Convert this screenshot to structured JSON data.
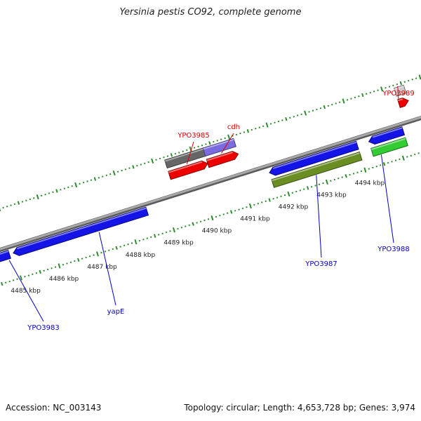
{
  "title": "Yersinia pestis CO92, complete genome",
  "footer": {
    "accession": "Accession: NC_003143",
    "summary": "Topology: circular; Length: 4,653,728 bp; Genes: 3,974"
  },
  "ticks": [
    {
      "kbp": 4485,
      "label": "4485 kbp"
    },
    {
      "kbp": 4486,
      "label": "4486 kbp"
    },
    {
      "kbp": 4487,
      "label": "4487 kbp"
    },
    {
      "kbp": 4488,
      "label": "4488 kbp"
    },
    {
      "kbp": 4489,
      "label": "4489 kbp"
    },
    {
      "kbp": 4490,
      "label": "4490 kbp"
    },
    {
      "kbp": 4491,
      "label": "4491 kbp"
    },
    {
      "kbp": 4492,
      "label": "4492 kbp"
    },
    {
      "kbp": 4493,
      "label": "4493 kbp"
    },
    {
      "kbp": 4494,
      "label": "4494 kbp"
    }
  ],
  "features": [
    {
      "name": "YPO3983",
      "strand": "minus",
      "track": "outer",
      "color": "#1414e6",
      "start_kbp": 4484.3,
      "end_kbp": 4484.9,
      "direction": "left",
      "labeled": true
    },
    {
      "name": "yapE",
      "strand": "minus",
      "track": "outer",
      "color": "#1414e6",
      "start_kbp": 4485.0,
      "end_kbp": 4488.5,
      "direction": "left",
      "labeled": true
    },
    {
      "name": "YPO3985",
      "strand": "plus",
      "track": "outer",
      "color": "#ee0000",
      "start_kbp": 4489.3,
      "end_kbp": 4490.3,
      "direction": "right",
      "labeled": true
    },
    {
      "name": "YPO3985-misc",
      "strand": "plus",
      "track": "inner",
      "color": "#666666",
      "start_kbp": 4489.3,
      "end_kbp": 4490.3,
      "direction": "none",
      "labeled": false
    },
    {
      "name": "cdh",
      "strand": "plus",
      "track": "outer",
      "color": "#ee0000",
      "start_kbp": 4490.3,
      "end_kbp": 4491.1,
      "direction": "right",
      "labeled": true
    },
    {
      "name": "cdh-misc",
      "strand": "plus",
      "track": "inner",
      "color": "#7a6ce0",
      "start_kbp": 4490.3,
      "end_kbp": 4491.1,
      "direction": "none",
      "labeled": false
    },
    {
      "name": "YPO3987",
      "strand": "minus",
      "track": "outer",
      "color": "#1414e6",
      "start_kbp": 4491.7,
      "end_kbp": 4494.0,
      "direction": "left",
      "labeled": false
    },
    {
      "name": "YPO3987-misc",
      "strand": "minus",
      "track": "inner",
      "color": "#6b8e23",
      "start_kbp": 4491.7,
      "end_kbp": 4494.0,
      "direction": "none",
      "labeled": true
    },
    {
      "name": "YPO3988",
      "strand": "minus",
      "track": "outer",
      "color": "#1414e6",
      "start_kbp": 4494.3,
      "end_kbp": 4495.2,
      "direction": "left",
      "labeled": false
    },
    {
      "name": "YPO3988-misc",
      "strand": "minus",
      "track": "inner",
      "color": "#33cc33",
      "start_kbp": 4494.3,
      "end_kbp": 4495.2,
      "direction": "none",
      "labeled": true
    },
    {
      "name": "YPO3989",
      "strand": "plus",
      "track": "outer",
      "color": "#ee0000",
      "start_kbp": 4495.3,
      "end_kbp": 4495.55,
      "direction": "right",
      "labeled": true
    },
    {
      "name": "YPO3989-misc",
      "strand": "plus",
      "track": "inner",
      "color": "#cccccc",
      "start_kbp": 4495.3,
      "end_kbp": 4495.55,
      "direction": "none",
      "labeled": false
    }
  ],
  "colors": {
    "plus_label": "#dd0000",
    "minus_label": "#0000cc",
    "tick": "#2e8b2e",
    "backbone": "#8c8c8c"
  }
}
